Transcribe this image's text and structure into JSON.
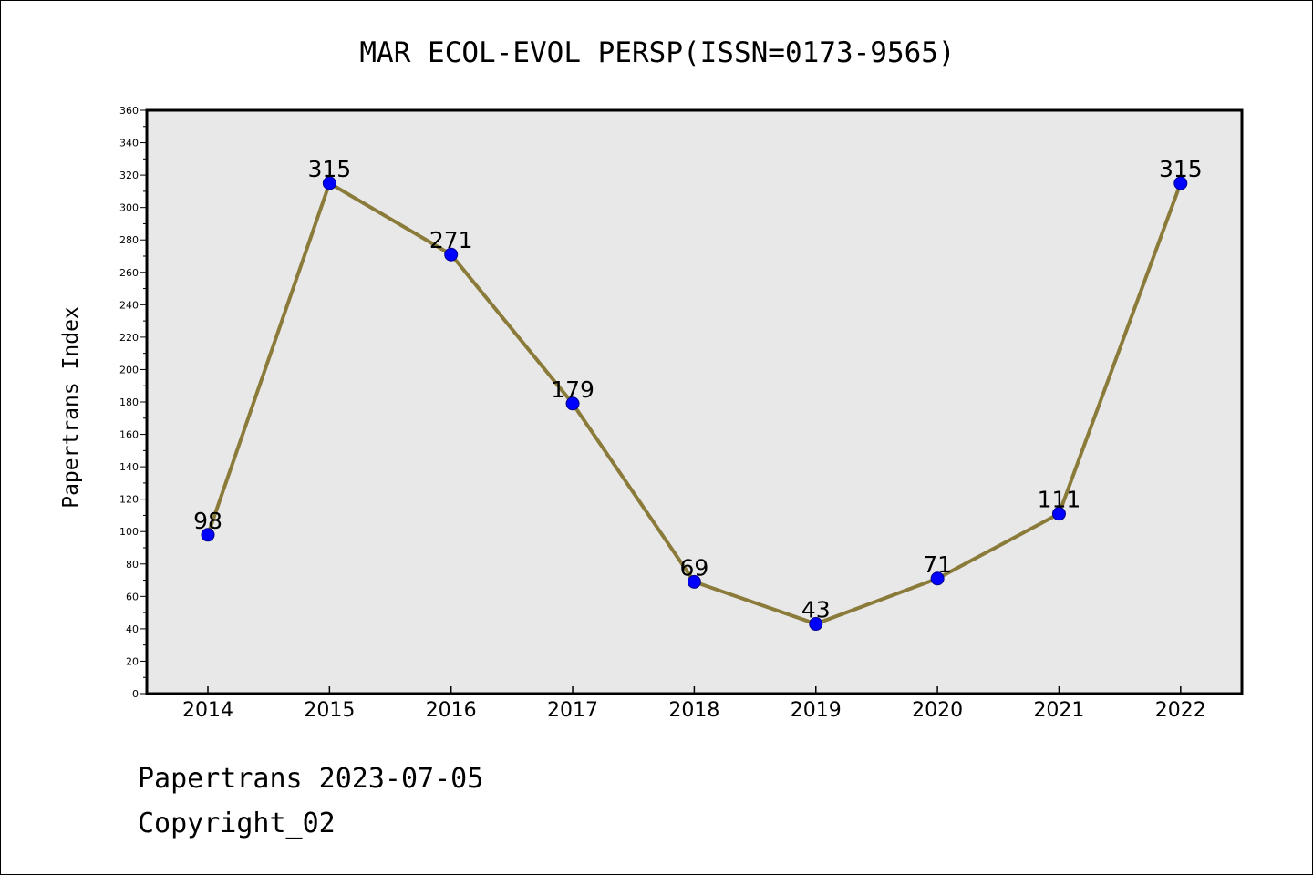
{
  "footer": {
    "line1": "Papertrans 2023-07-05",
    "line2": "Copyright_02"
  },
  "colors": {
    "plot_background": "#e8e8e8",
    "line": "#8b7b3a",
    "marker": "#0000ff",
    "marker_edge": "#00008b"
  },
  "chart_data": {
    "type": "line",
    "title": "MAR ECOL-EVOL PERSP(ISSN=0173-9565)",
    "xlabel": "",
    "ylabel": "Papertrans Index",
    "categories": [
      "2014",
      "2015",
      "2016",
      "2017",
      "2018",
      "2019",
      "2020",
      "2021",
      "2022"
    ],
    "series": [
      {
        "values": [
          98,
          315,
          271,
          179,
          69,
          43,
          71,
          111,
          315
        ]
      }
    ],
    "data_labels": [
      "98",
      "315",
      "271",
      "179",
      "69",
      "43",
      "71",
      "111",
      "315"
    ],
    "ylim": [
      0,
      360
    ],
    "y_major_ticks": [
      0,
      20,
      40,
      60,
      80,
      100,
      120,
      140,
      160,
      180,
      200,
      220,
      240,
      260,
      280,
      300,
      320,
      340,
      360
    ],
    "grid": false,
    "legend": "none"
  }
}
